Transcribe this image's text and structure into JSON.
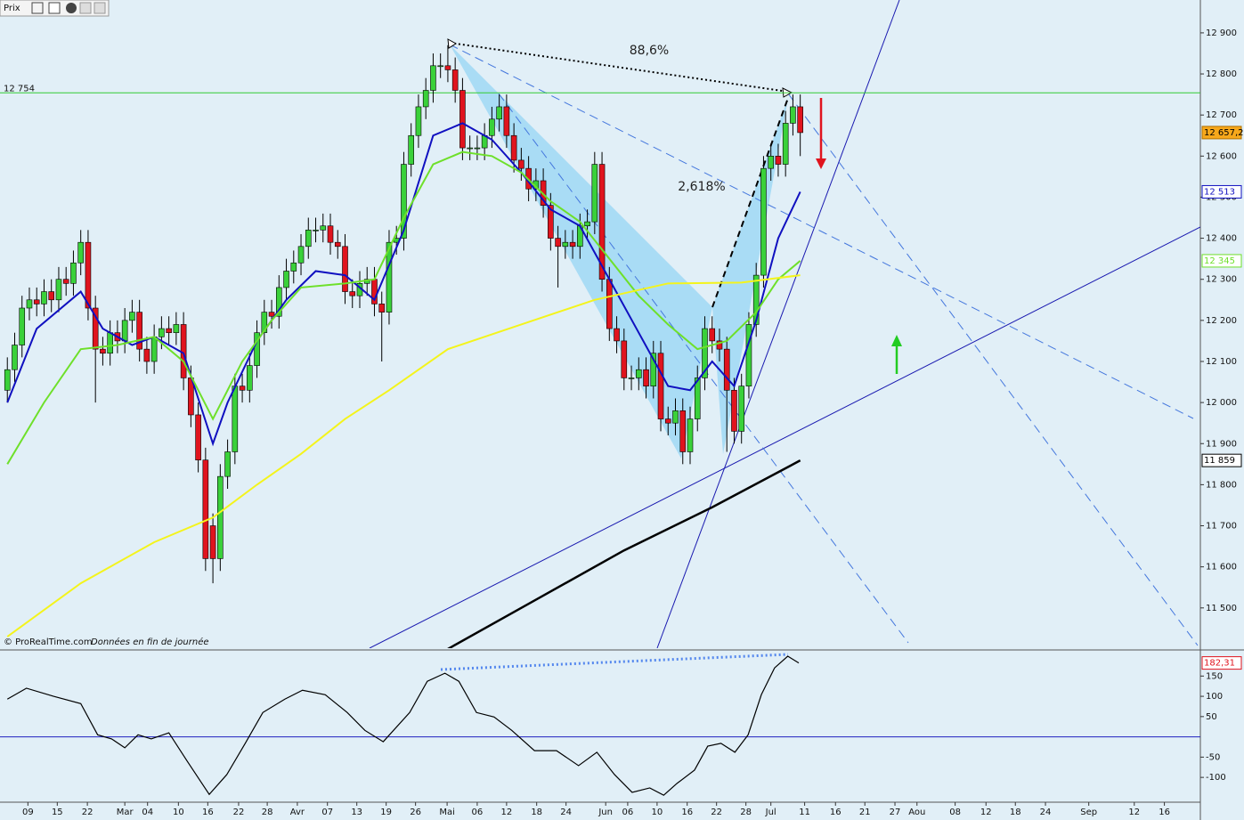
{
  "chart_data": [
    {
      "type": "candlestick",
      "title": "Prix",
      "source": "© ProRealTime.com",
      "note": "Données en fin de journée",
      "annotations": [
        "88,6%",
        "2,618%"
      ],
      "up_color": "#3ad13a",
      "down_color": "#e0141e",
      "tag_color": "#f7a81b",
      "end_label": "12 657,2",
      "open": [
        12030,
        12080,
        12140,
        12230,
        12250,
        12240,
        12270,
        12250,
        12300,
        12290,
        12340,
        12390,
        12230,
        12130,
        12120,
        12170,
        12150,
        12200,
        12220,
        12130,
        12100,
        12160,
        12180,
        12170,
        12190,
        12060,
        11970,
        11860,
        11700,
        11620,
        11820,
        11880,
        12040,
        12030,
        12090,
        12170,
        12220,
        12210,
        12280,
        12320,
        12340,
        12380,
        12420,
        12420,
        12430,
        12390,
        12380,
        12270,
        12260,
        12290,
        12300,
        12240,
        12220,
        12390,
        12400,
        12580,
        12650,
        12720,
        12760,
        12820,
        12820,
        12810,
        12760,
        12620,
        12620,
        12620,
        12650,
        12690,
        12720,
        12650,
        12590,
        12570,
        12520,
        12540,
        12480,
        12400,
        12380,
        12390,
        12380,
        12430,
        12440,
        12580,
        12300,
        12180,
        12150,
        12060,
        12060,
        12080,
        12040,
        12120,
        11960,
        11950,
        11980,
        11880,
        11960,
        12060,
        12180,
        12150,
        12130,
        12030,
        11930,
        12040,
        12190,
        12310,
        12570,
        12600,
        12580,
        12680,
        12720
      ],
      "high": [
        12110,
        12170,
        12260,
        12280,
        12280,
        12300,
        12300,
        12330,
        12330,
        12370,
        12420,
        12420,
        12260,
        12160,
        12200,
        12200,
        12230,
        12250,
        12250,
        12160,
        12190,
        12210,
        12210,
        12220,
        12220,
        12090,
        12000,
        11890,
        11730,
        11850,
        11910,
        12070,
        12070,
        12120,
        12200,
        12250,
        12250,
        12310,
        12350,
        12370,
        12410,
        12450,
        12450,
        12460,
        12460,
        12420,
        12410,
        12300,
        12320,
        12330,
        12330,
        12270,
        12420,
        12430,
        12610,
        12680,
        12750,
        12790,
        12850,
        12850,
        12870,
        12840,
        12790,
        12650,
        12650,
        12680,
        12720,
        12750,
        12750,
        12680,
        12620,
        12600,
        12570,
        12570,
        12510,
        12430,
        12420,
        12420,
        12460,
        12470,
        12610,
        12610,
        12330,
        12210,
        12180,
        12090,
        12110,
        12110,
        12150,
        12150,
        11990,
        12010,
        12010,
        11990,
        12090,
        12210,
        12210,
        12180,
        12160,
        12060,
        12070,
        12220,
        12340,
        12600,
        12630,
        12630,
        12710,
        12750,
        12750
      ],
      "low": [
        12000,
        12050,
        12110,
        12200,
        12210,
        12210,
        12220,
        12220,
        12260,
        12260,
        12310,
        12200,
        12000,
        12090,
        12090,
        12120,
        12120,
        12170,
        12100,
        12070,
        12070,
        12130,
        12140,
        12140,
        12030,
        11940,
        11830,
        11590,
        11560,
        11590,
        11790,
        11850,
        12000,
        12000,
        12060,
        12140,
        12180,
        12180,
        12250,
        12290,
        12310,
        12350,
        12390,
        12390,
        12360,
        12350,
        12240,
        12230,
        12230,
        12260,
        12210,
        12100,
        12190,
        12360,
        12370,
        12550,
        12620,
        12690,
        12730,
        12790,
        12780,
        12730,
        12590,
        12590,
        12590,
        12590,
        12620,
        12660,
        12620,
        12560,
        12540,
        12490,
        12490,
        12450,
        12370,
        12280,
        12350,
        12350,
        12350,
        12400,
        12410,
        12270,
        12150,
        12120,
        12030,
        12030,
        12030,
        12010,
        12010,
        11930,
        11920,
        11920,
        11850,
        11850,
        11930,
        12030,
        12120,
        12100,
        11880,
        11900,
        11900,
        12010,
        12160,
        12280,
        12540,
        12550,
        12550,
        12650,
        12600
      ],
      "close": [
        12080,
        12140,
        12230,
        12250,
        12240,
        12270,
        12250,
        12300,
        12290,
        12340,
        12390,
        12230,
        12130,
        12120,
        12170,
        12150,
        12200,
        12220,
        12130,
        12100,
        12160,
        12180,
        12170,
        12190,
        12060,
        11970,
        11860,
        11620,
        11620,
        11820,
        11880,
        12040,
        12030,
        12090,
        12170,
        12220,
        12210,
        12280,
        12320,
        12340,
        12380,
        12420,
        12420,
        12430,
        12390,
        12380,
        12270,
        12260,
        12290,
        12300,
        12240,
        12220,
        12390,
        12400,
        12580,
        12650,
        12720,
        12760,
        12820,
        12820,
        12810,
        12760,
        12620,
        12620,
        12620,
        12650,
        12690,
        12720,
        12650,
        12590,
        12570,
        12520,
        12540,
        12480,
        12400,
        12380,
        12390,
        12380,
        12430,
        12440,
        12580,
        12300,
        12180,
        12150,
        12060,
        12060,
        12080,
        12040,
        12120,
        11960,
        11950,
        11980,
        11880,
        11960,
        12060,
        12180,
        12150,
        12130,
        12030,
        11930,
        12040,
        12190,
        12310,
        12570,
        12600,
        12580,
        12680,
        12720,
        12657.2
      ],
      "lines": [
        {
          "color": "#1010c0",
          "end_label": "12 513",
          "x": [
            0,
            4,
            10,
            13,
            17,
            20,
            24,
            28,
            30,
            34,
            38,
            42,
            46,
            50,
            54,
            58,
            62,
            66,
            70,
            74,
            78,
            82,
            86,
            90,
            93,
            96,
            99,
            102,
            105,
            108
          ],
          "values": [
            12000,
            12180,
            12270,
            12180,
            12140,
            12160,
            12120,
            11900,
            12000,
            12150,
            12250,
            12320,
            12310,
            12250,
            12420,
            12650,
            12680,
            12640,
            12560,
            12470,
            12430,
            12300,
            12170,
            12040,
            12030,
            12100,
            12040,
            12200,
            12400,
            12513
          ]
        },
        {
          "color": "#6ee02a",
          "end_label": "12 345",
          "x": [
            0,
            5,
            10,
            15,
            20,
            24,
            28,
            32,
            36,
            40,
            46,
            50,
            54,
            58,
            62,
            66,
            70,
            74,
            78,
            82,
            86,
            90,
            94,
            98,
            102,
            105,
            108
          ],
          "values": [
            11850,
            12000,
            12130,
            12140,
            12160,
            12100,
            11960,
            12100,
            12200,
            12280,
            12290,
            12300,
            12450,
            12580,
            12610,
            12600,
            12560,
            12490,
            12440,
            12350,
            12260,
            12190,
            12130,
            12150,
            12220,
            12300,
            12345
          ]
        },
        {
          "color": "#f4f41c",
          "x": [
            0,
            10,
            20,
            28,
            34,
            40,
            46,
            52,
            60,
            70,
            80,
            90,
            100,
            108
          ],
          "values": [
            11430,
            11560,
            11660,
            11720,
            11800,
            11875,
            11960,
            12030,
            12130,
            12190,
            12250,
            12290,
            12292,
            12310
          ]
        },
        {
          "color": "#000000",
          "end_label": "11 859",
          "x": [
            60,
            72,
            84,
            96,
            108
          ],
          "values": [
            11400,
            11520,
            11640,
            11745,
            11859
          ]
        }
      ],
      "hline": {
        "value": 12754,
        "label": "12 754",
        "color": "#33cc33"
      },
      "xlim": [
        -1,
        162.5
      ],
      "ylim": [
        11402,
        12980
      ],
      "yticks": [
        {
          "value": 12900,
          "label": "12 900"
        },
        {
          "value": 12800,
          "label": "12 800"
        },
        {
          "value": 12700,
          "label": "12 700"
        },
        {
          "value": 12600,
          "label": "12 600"
        },
        {
          "value": 12500,
          "label": "12 500"
        },
        {
          "value": 12400,
          "label": "12 400"
        },
        {
          "value": 12300,
          "label": "12 300"
        },
        {
          "value": 12200,
          "label": "12 200"
        },
        {
          "value": 12100,
          "label": "12 100"
        },
        {
          "value": 12000,
          "label": "12 000"
        },
        {
          "value": 11900,
          "label": "11 900"
        },
        {
          "value": 11800,
          "label": "11 800"
        },
        {
          "value": 11700,
          "label": "11 700"
        },
        {
          "value": 11600,
          "label": "11 600"
        },
        {
          "value": 11500,
          "label": "11 500"
        }
      ],
      "xticks": [
        {
          "value": 2.8,
          "label": "09"
        },
        {
          "value": 6.8,
          "label": "15"
        },
        {
          "value": 10.9,
          "label": "22"
        },
        {
          "value": 16.0,
          "label": "Mar"
        },
        {
          "value": 19.1,
          "label": "04"
        },
        {
          "value": 23.3,
          "label": "10"
        },
        {
          "value": 27.3,
          "label": "16"
        },
        {
          "value": 31.5,
          "label": "22"
        },
        {
          "value": 35.4,
          "label": "28"
        },
        {
          "value": 39.5,
          "label": "Avr"
        },
        {
          "value": 43.6,
          "label": "07"
        },
        {
          "value": 47.6,
          "label": "13"
        },
        {
          "value": 51.6,
          "label": "19"
        },
        {
          "value": 55.6,
          "label": "26"
        },
        {
          "value": 59.9,
          "label": "Mai"
        },
        {
          "value": 64.0,
          "label": "06"
        },
        {
          "value": 68.0,
          "label": "12"
        },
        {
          "value": 72.1,
          "label": "18"
        },
        {
          "value": 76.1,
          "label": "24"
        },
        {
          "value": 81.5,
          "label": "Jun"
        },
        {
          "value": 84.5,
          "label": "06"
        },
        {
          "value": 88.5,
          "label": "10"
        },
        {
          "value": 92.6,
          "label": "16"
        },
        {
          "value": 96.6,
          "label": "22"
        },
        {
          "value": 100.6,
          "label": "28"
        },
        {
          "value": 104.0,
          "label": "Jul"
        },
        {
          "value": 108.6,
          "label": "11"
        },
        {
          "value": 112.8,
          "label": "16"
        },
        {
          "value": 116.8,
          "label": "21"
        },
        {
          "value": 120.9,
          "label": "27"
        },
        {
          "value": 123.9,
          "label": "Aou"
        },
        {
          "value": 129.1,
          "label": "08"
        },
        {
          "value": 133.3,
          "label": "12"
        },
        {
          "value": 137.3,
          "label": "18"
        },
        {
          "value": 141.4,
          "label": "24"
        },
        {
          "value": 147.3,
          "label": "Sep"
        },
        {
          "value": 153.5,
          "label": "12"
        },
        {
          "value": 157.6,
          "label": "16"
        }
      ]
    },
    {
      "type": "line",
      "color": "#000000",
      "end_label": "182,31",
      "tag_color": "#e0141e",
      "hline": {
        "value": 0,
        "color": "#2020c0"
      },
      "xlim": [
        -1,
        162.5
      ],
      "ylim": [
        -159,
        210
      ],
      "yticks": [
        150,
        100,
        50,
        -50,
        -100
      ],
      "x": [
        0,
        2.6,
        6.3,
        10,
        12.3,
        14.2,
        16,
        17.8,
        19.6,
        22,
        24.5,
        27.5,
        29.9,
        32.4,
        34.8,
        37.8,
        40.2,
        43.3,
        46.3,
        48.7,
        51.2,
        54.8,
        57.2,
        59.6,
        61.5,
        63.9,
        66.3,
        68.7,
        71.8,
        74.8,
        77.8,
        80.3,
        82.7,
        85.1,
        87.5,
        89.4,
        91.2,
        93.6,
        95.4,
        97.2,
        99.1,
        100.9,
        102.7,
        104.5,
        106.3,
        107.8
      ],
      "values": [
        93,
        120,
        100,
        82,
        5,
        -5,
        -27,
        5,
        -5,
        10,
        -60,
        -142,
        -93,
        -16,
        60,
        93,
        115,
        104,
        60,
        16,
        -12,
        60,
        137,
        157,
        137,
        60,
        49,
        16,
        -34,
        -34,
        -71,
        -38,
        -93,
        -137,
        -126,
        -144,
        -115,
        -82,
        -23,
        -16,
        -38,
        5,
        104,
        170,
        199,
        182.31
      ]
    }
  ]
}
